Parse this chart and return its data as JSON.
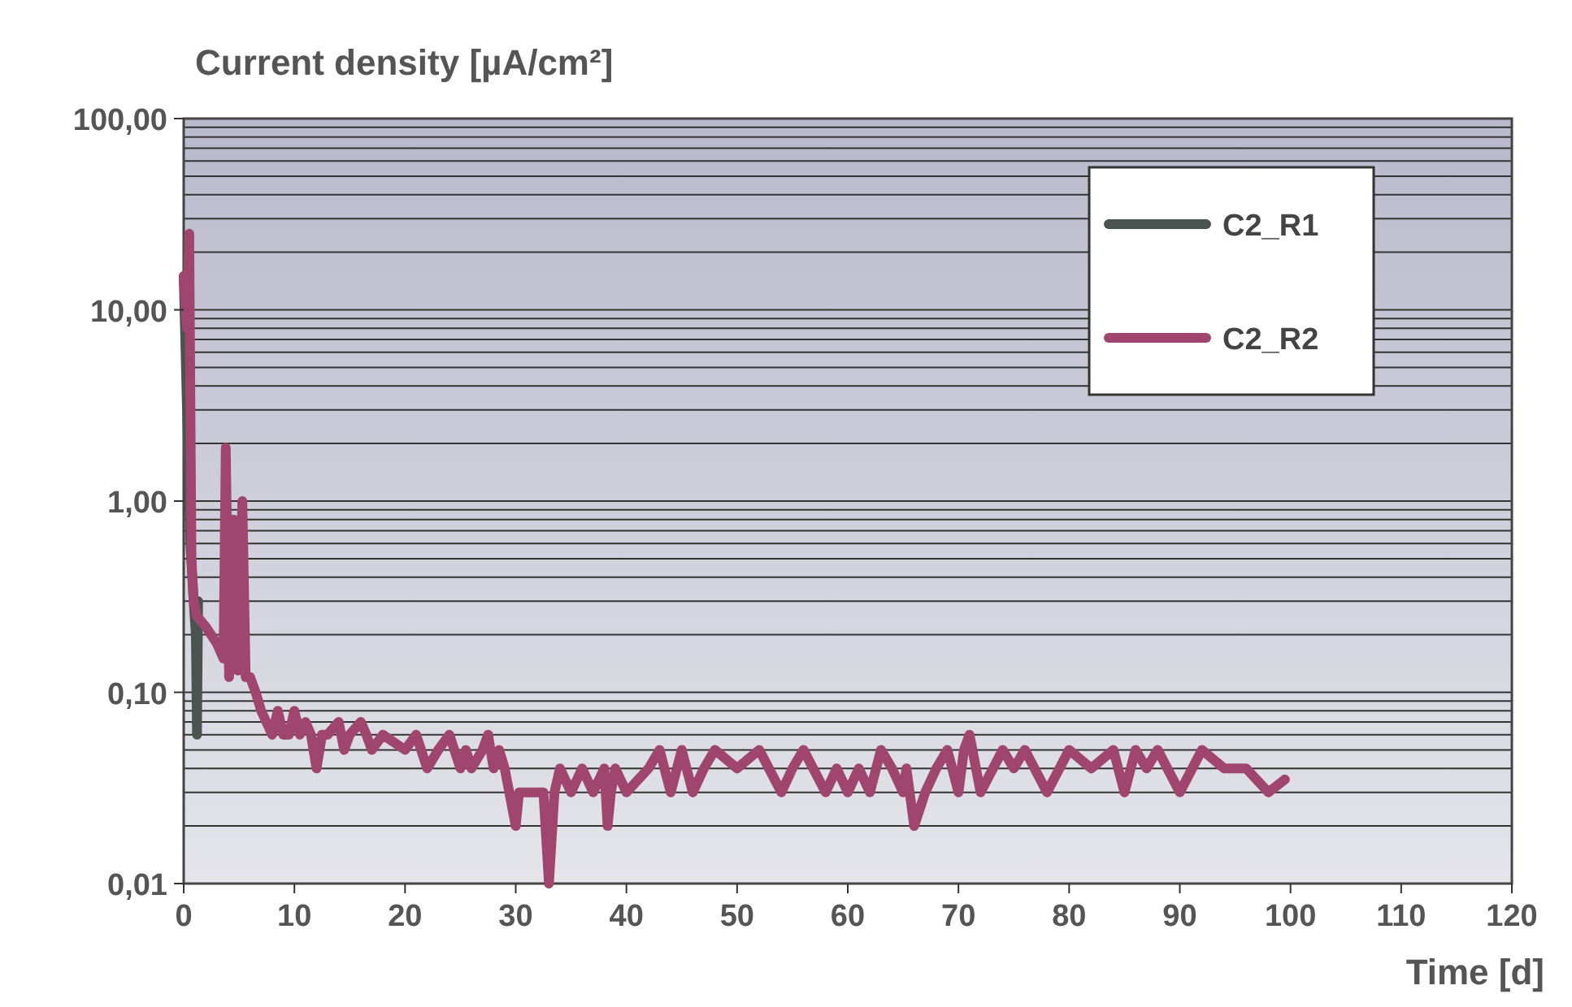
{
  "chart_data": {
    "type": "line",
    "ylabel": "Current density [µA/cm²]",
    "xlabel": "Time [d]",
    "log": "y",
    "grid": true,
    "legend": "top right",
    "line_style": "solid",
    "xlim": [
      0,
      120
    ],
    "xticks": [
      0,
      10,
      20,
      30,
      40,
      50,
      60,
      70,
      80,
      90,
      100,
      110,
      120
    ],
    "ylim": [
      0.01,
      100
    ],
    "yticks": [
      {
        "value": 100,
        "label": "100,00"
      },
      {
        "value": 10,
        "label": "10,00"
      },
      {
        "value": 1,
        "label": "1,00"
      },
      {
        "value": 0.1,
        "label": "0,10"
      },
      {
        "value": 0.01,
        "label": "0,01"
      }
    ],
    "series": [
      {
        "name": "C2_R1",
        "color": "#4a5350",
        "x": [
          0,
          0.3,
          0.6,
          0.9,
          1.1,
          1.2,
          1.3
        ],
        "values": [
          15,
          3,
          0.6,
          0.3,
          0.2,
          0.06,
          0.3
        ]
      },
      {
        "name": "C2_R2",
        "color": "#a0456e",
        "x": [
          0,
          0.3,
          0.5,
          0.7,
          0.9,
          1.2,
          2,
          3,
          3.6,
          3.8,
          4.1,
          4.5,
          4.9,
          5.3,
          5.6,
          6,
          6.5,
          7,
          8,
          8.5,
          9,
          9.5,
          10,
          10.5,
          11,
          11.5,
          12,
          12.5,
          13,
          14,
          14.5,
          15,
          16,
          16.5,
          17,
          18,
          20,
          21,
          22,
          23,
          24,
          25,
          25.5,
          26,
          27,
          27.5,
          28,
          28.5,
          29,
          30,
          30.3,
          31,
          32.5,
          33,
          33.5,
          34,
          35,
          36,
          37,
          38,
          38.3,
          38.6,
          39,
          40,
          42,
          43,
          44,
          45,
          46,
          47,
          48,
          50,
          52,
          54,
          55,
          56,
          58,
          59,
          60,
          61,
          62,
          63,
          64,
          65,
          65.3,
          66,
          67,
          68,
          69,
          70,
          70.5,
          71,
          72,
          74,
          75,
          76,
          78,
          80,
          82,
          84,
          85,
          86,
          87,
          88,
          90,
          92,
          94,
          96,
          98,
          99.5
        ],
        "values": [
          15,
          8,
          25,
          0.5,
          0.3,
          0.25,
          0.22,
          0.18,
          0.15,
          1.9,
          0.12,
          0.8,
          0.13,
          1.0,
          0.12,
          0.12,
          0.1,
          0.08,
          0.06,
          0.08,
          0.06,
          0.06,
          0.08,
          0.06,
          0.07,
          0.06,
          0.04,
          0.06,
          0.06,
          0.07,
          0.05,
          0.06,
          0.07,
          0.06,
          0.05,
          0.06,
          0.05,
          0.06,
          0.04,
          0.05,
          0.06,
          0.04,
          0.05,
          0.04,
          0.05,
          0.06,
          0.04,
          0.05,
          0.04,
          0.02,
          0.03,
          0.03,
          0.03,
          0.01,
          0.03,
          0.04,
          0.03,
          0.04,
          0.03,
          0.04,
          0.02,
          0.03,
          0.04,
          0.03,
          0.04,
          0.05,
          0.03,
          0.05,
          0.03,
          0.04,
          0.05,
          0.04,
          0.05,
          0.03,
          0.04,
          0.05,
          0.03,
          0.04,
          0.03,
          0.04,
          0.03,
          0.05,
          0.04,
          0.03,
          0.04,
          0.02,
          0.03,
          0.04,
          0.05,
          0.03,
          0.05,
          0.06,
          0.03,
          0.05,
          0.04,
          0.05,
          0.03,
          0.05,
          0.04,
          0.05,
          0.03,
          0.05,
          0.04,
          0.05,
          0.03,
          0.05,
          0.04,
          0.04,
          0.03,
          0.035
        ]
      }
    ]
  }
}
